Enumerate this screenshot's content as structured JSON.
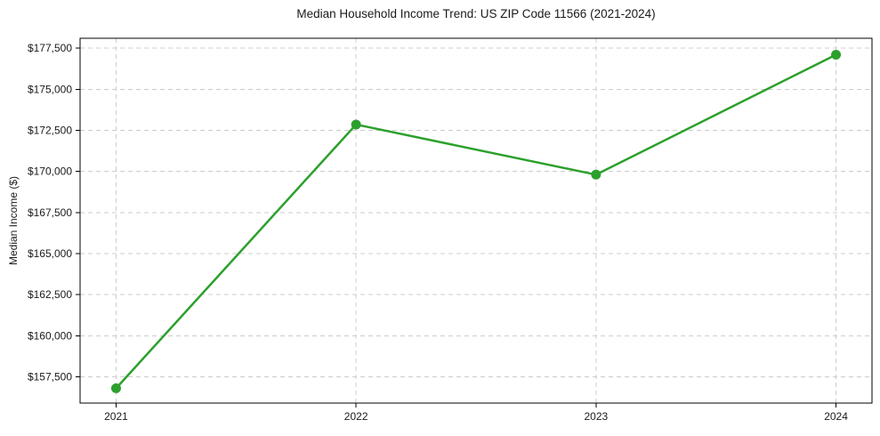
{
  "title": "Median Household Income Trend: US ZIP Code 11566 (2021-2024)",
  "chart_data": {
    "type": "line",
    "title": "Median Household Income Trend: US ZIP Code 11566 (2021-2024)",
    "xlabel": "",
    "ylabel": "Median Income ($)",
    "x": [
      2021,
      2022,
      2023,
      2024
    ],
    "series": [
      {
        "name": "Median Household Income",
        "values": [
          156800,
          172850,
          169800,
          177100
        ]
      }
    ],
    "xticks": {
      "values": [
        2021,
        2022,
        2023,
        2024
      ],
      "labels": [
        "2021",
        "2022",
        "2023",
        "2024"
      ]
    },
    "yticks": {
      "values": [
        157500,
        160000,
        162500,
        165000,
        167500,
        170000,
        172500,
        175000,
        177500
      ],
      "labels": [
        "$157,500",
        "$160,000",
        "$162,500",
        "$165,000",
        "$167,500",
        "$170,000",
        "$172,500",
        "$175,000",
        "$177,500"
      ]
    },
    "xlim": [
      2020.85,
      2024.15
    ],
    "ylim": [
      155900,
      178100
    ],
    "grid": true,
    "grid_style": "dashed",
    "legend": "none",
    "marker": "circle"
  },
  "colors": {
    "line": "#2ca02c",
    "marker": "#2ca02c",
    "grid": "#cccccc",
    "axis": "#000000",
    "text": "#1a1a1a",
    "background": "#ffffff"
  }
}
